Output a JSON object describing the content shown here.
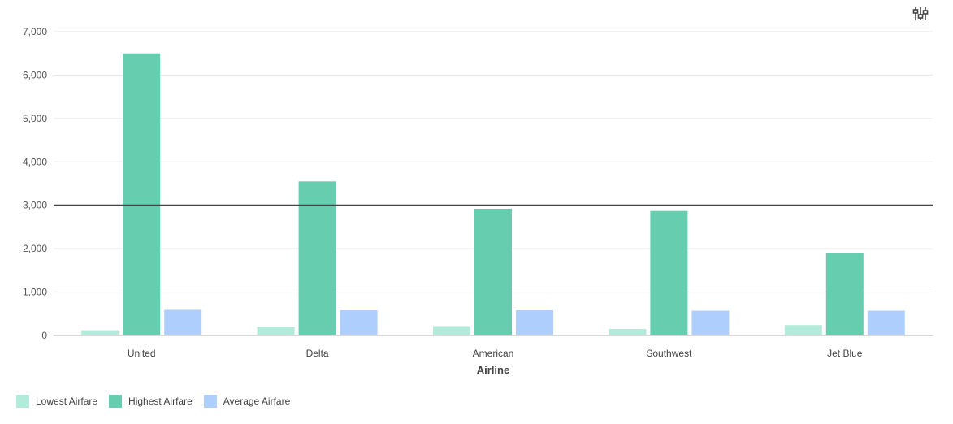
{
  "chart_data": {
    "type": "bar",
    "title": "",
    "xlabel": "Airline",
    "ylabel": "",
    "ylim": [
      0,
      7000
    ],
    "yticks": [
      0,
      1000,
      2000,
      3000,
      4000,
      5000,
      6000,
      7000
    ],
    "ytick_labels": [
      "0",
      "1,000",
      "2,000",
      "3,000",
      "4,000",
      "5,000",
      "6,000",
      "7,000"
    ],
    "categories": [
      "United",
      "Delta",
      "American",
      "Southwest",
      "Jet Blue"
    ],
    "series": [
      {
        "name": "Lowest Airfare",
        "color": "#b3ebdb",
        "values": [
          120,
          200,
          215,
          150,
          240
        ]
      },
      {
        "name": "Highest Airfare",
        "color": "#66cdae",
        "values": [
          6500,
          3550,
          2920,
          2870,
          1890
        ]
      },
      {
        "name": "Average Airfare",
        "color": "#aecffd",
        "values": [
          590,
          580,
          580,
          570,
          570
        ]
      }
    ],
    "reference_line": {
      "value": 3000,
      "color": "#444444"
    },
    "grid": true,
    "legend_position": "bottom-left"
  },
  "toolbar": {
    "settings_icon": "sliders-icon"
  }
}
